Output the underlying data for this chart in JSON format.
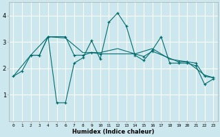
{
  "xlabel": "Humidex (Indice chaleur)",
  "bg_color": "#cce8ee",
  "grid_color": "#ffffff",
  "line_color": "#006b6b",
  "xlim": [
    -0.5,
    23.5
  ],
  "ylim": [
    0.0,
    4.5
  ],
  "yticks": [
    1,
    2,
    3,
    4
  ],
  "xticks": [
    0,
    1,
    2,
    3,
    4,
    5,
    6,
    7,
    8,
    9,
    10,
    11,
    12,
    13,
    14,
    15,
    16,
    17,
    18,
    19,
    20,
    21,
    22,
    23
  ],
  "line1_x": [
    0,
    1,
    2,
    3,
    4,
    5,
    6,
    7,
    8,
    9,
    10,
    11,
    12,
    13,
    14,
    15,
    16,
    17,
    18,
    19,
    20,
    21,
    22,
    23
  ],
  "line1_y": [
    1.7,
    1.9,
    2.5,
    2.5,
    3.2,
    0.7,
    0.7,
    2.2,
    2.4,
    3.05,
    2.35,
    3.75,
    4.1,
    3.6,
    2.5,
    2.3,
    2.7,
    3.2,
    2.2,
    2.2,
    2.2,
    2.1,
    1.4,
    1.6
  ],
  "line2_x": [
    2,
    3,
    4,
    6,
    7,
    8,
    9,
    10,
    14,
    15,
    16,
    19,
    20,
    21,
    22,
    23
  ],
  "line2_y": [
    2.5,
    2.5,
    3.2,
    3.2,
    2.5,
    2.5,
    2.6,
    2.55,
    2.55,
    2.45,
    2.65,
    2.25,
    2.25,
    2.2,
    1.7,
    1.65
  ],
  "line3_x": [
    0,
    2,
    4,
    6,
    8,
    10,
    12,
    14,
    16,
    18,
    20,
    22,
    23
  ],
  "line3_y": [
    1.7,
    2.5,
    3.2,
    3.15,
    2.6,
    2.6,
    2.75,
    2.55,
    2.75,
    2.35,
    2.25,
    1.75,
    1.65
  ]
}
